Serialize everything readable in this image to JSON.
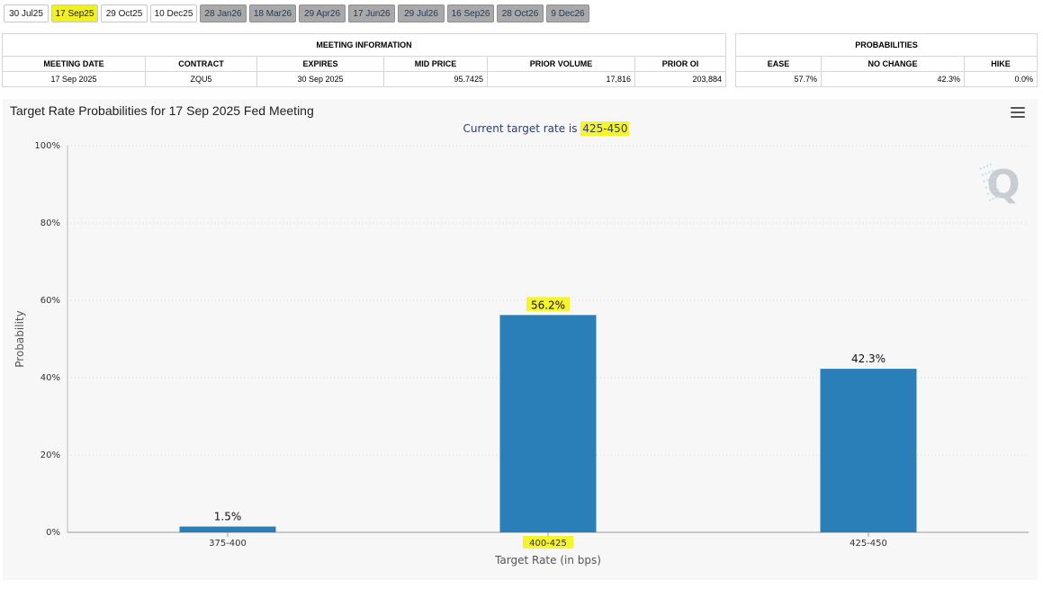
{
  "tabs": [
    {
      "label": "30 Jul25",
      "state": "normal"
    },
    {
      "label": "17 Sep25",
      "state": "active"
    },
    {
      "label": "29 Oct25",
      "state": "normal"
    },
    {
      "label": "10 Dec25",
      "state": "normal"
    },
    {
      "label": "28 Jan26",
      "state": "future"
    },
    {
      "label": "18 Mar26",
      "state": "future"
    },
    {
      "label": "29 Apr26",
      "state": "future"
    },
    {
      "label": "17 Jun26",
      "state": "future"
    },
    {
      "label": "29 Jul26",
      "state": "future"
    },
    {
      "label": "16 Sep26",
      "state": "future"
    },
    {
      "label": "28 Oct26",
      "state": "future"
    },
    {
      "label": "9 Dec26",
      "state": "future"
    }
  ],
  "meeting_info": {
    "caption": "MEETING INFORMATION",
    "headers": [
      "MEETING DATE",
      "CONTRACT",
      "EXPIRES",
      "MID PRICE",
      "PRIOR VOLUME",
      "PRIOR OI"
    ],
    "row": [
      "17 Sep 2025",
      "ZQU5",
      "30 Sep 2025",
      "95.7425",
      "17,816",
      "203,884"
    ]
  },
  "probabilities": {
    "caption": "PROBABILITIES",
    "headers": [
      "EASE",
      "NO CHANGE",
      "HIKE"
    ],
    "row": [
      "57.7%",
      "42.3%",
      "0.0%"
    ]
  },
  "chart": {
    "title": "Target Rate Probabilities for 17 Sep 2025 Fed Meeting",
    "subtitle_prefix": "Current target rate is ",
    "subtitle_rate": "425-450",
    "watermark": "Q"
  },
  "colors": {
    "bar": "#2a7fb8",
    "highlight": "#f6f42a",
    "grid": "#d9d9d9"
  },
  "chart_data": {
    "type": "bar",
    "title": "Target Rate Probabilities for 17 Sep 2025 Fed Meeting",
    "xlabel": "Target Rate (in bps)",
    "ylabel": "Probability",
    "categories": [
      "375-400",
      "400-425",
      "425-450"
    ],
    "values": [
      1.5,
      56.2,
      42.3
    ],
    "data_labels": [
      "1.5%",
      "56.2%",
      "42.3%"
    ],
    "highlighted_category": "400-425",
    "highlighted_label": "56.2%",
    "ylim": [
      0,
      100
    ],
    "yticks": [
      "0%",
      "20%",
      "40%",
      "60%",
      "80%",
      "100%"
    ],
    "grid": true
  }
}
